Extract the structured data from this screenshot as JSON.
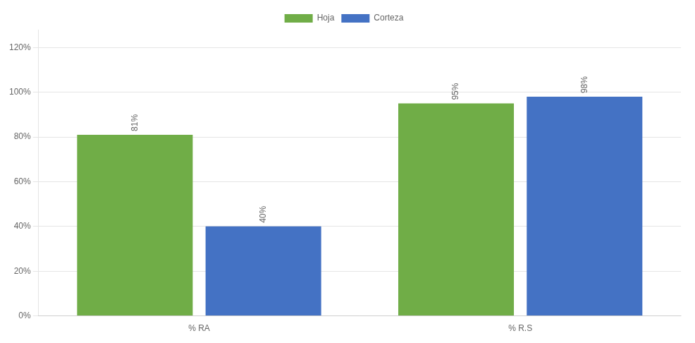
{
  "chart_data": {
    "type": "bar",
    "categories": [
      "% RA",
      "% R.S"
    ],
    "series": [
      {
        "name": "Hoja",
        "color": "#70AD47",
        "values": [
          0.81,
          0.95
        ],
        "value_labels": [
          "81%",
          "95%"
        ]
      },
      {
        "name": "Corteza",
        "color": "#4472C4",
        "values": [
          0.4,
          0.98
        ],
        "value_labels": [
          "40%",
          "98%"
        ]
      }
    ],
    "ylim": [
      0.0,
      1.28
    ],
    "yticks": [
      {
        "value": 0.0,
        "label": "0%"
      },
      {
        "value": 0.2,
        "label": "20%"
      },
      {
        "value": 0.4,
        "label": "40%"
      },
      {
        "value": 0.6,
        "label": "60%"
      },
      {
        "value": 0.8,
        "label": "80%"
      },
      {
        "value": 1.0,
        "label": "100%"
      },
      {
        "value": 1.2,
        "label": "120%"
      }
    ],
    "grid": true,
    "legend": "top",
    "data_labels": true
  }
}
